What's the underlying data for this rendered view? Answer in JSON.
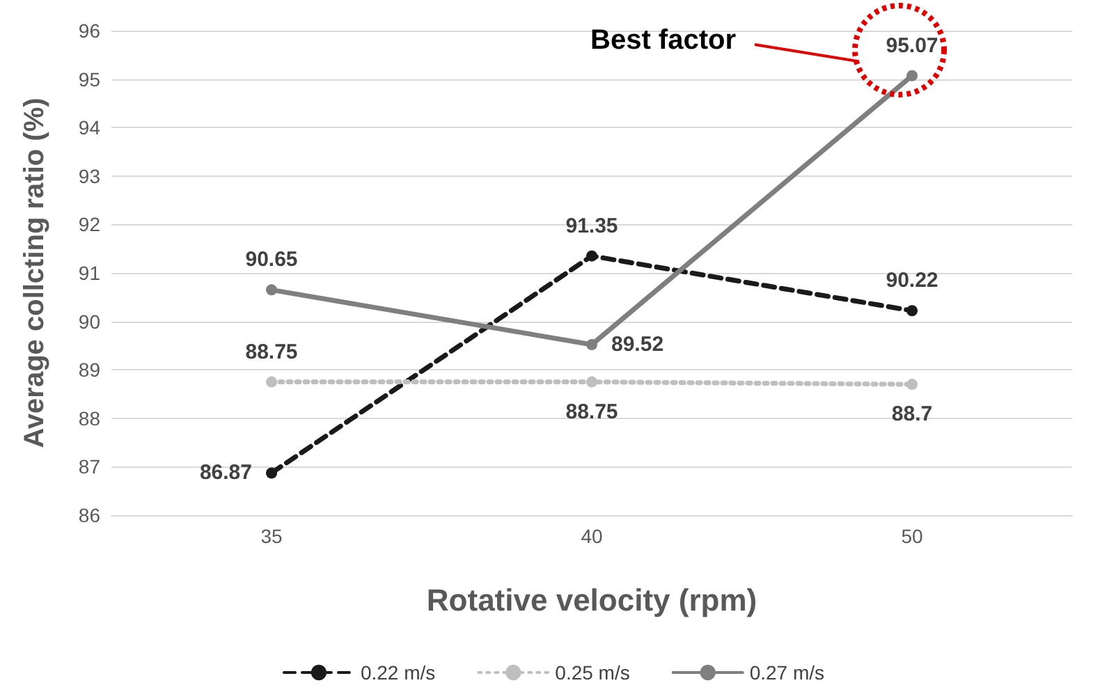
{
  "chart_data": {
    "type": "line",
    "xlabel": "Rotative velocity (rpm)",
    "ylabel": "Average collcting ratio (%)",
    "categories": [
      "35",
      "40",
      "50"
    ],
    "series": [
      {
        "name": "0.22 m/s",
        "color": "#1a1a1a",
        "line_style": "dashed",
        "values": [
          86.87,
          91.35,
          90.22
        ]
      },
      {
        "name": "0.25 m/s",
        "color": "#bfbfbf",
        "line_style": "dotted",
        "values": [
          88.75,
          88.75,
          88.7
        ]
      },
      {
        "name": "0.27 m/s",
        "color": "#7f7f7f",
        "line_style": "solid",
        "values": [
          90.65,
          89.52,
          95.07
        ]
      }
    ],
    "ylim": [
      86,
      96
    ],
    "yticks": [
      86,
      87,
      88,
      89,
      90,
      91,
      92,
      93,
      94,
      95,
      96
    ],
    "grid": "y",
    "legend": "bottom",
    "marker": "circle",
    "data_labels": true,
    "annotations": [
      "Best factor"
    ]
  }
}
